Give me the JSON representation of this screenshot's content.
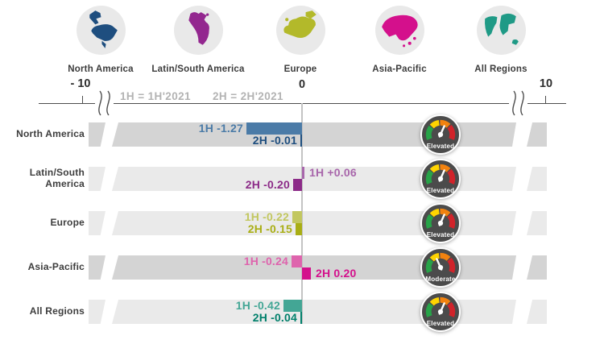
{
  "header": {
    "regions": [
      {
        "name": "North America",
        "icon": "north-america-map-icon",
        "color": "#1e4e7f"
      },
      {
        "name": "Latin/South America",
        "icon": "latin-south-america-map-icon",
        "color": "#93278f"
      },
      {
        "name": "Europe",
        "icon": "europe-map-icon",
        "color": "#b3b92a"
      },
      {
        "name": "Asia-Pacific",
        "icon": "asia-pacific-map-icon",
        "color": "#d4108c"
      },
      {
        "name": "All Regions",
        "icon": "world-map-icon",
        "color": "#1f9a86"
      }
    ]
  },
  "axis": {
    "min_label": "- 10",
    "zero_label": "0",
    "max_label": "10",
    "legend_1h": "1H = 1H'2021",
    "legend_2h": "2H = 2H'2021"
  },
  "chart_data": {
    "type": "bar",
    "orientation": "horizontal",
    "title": "",
    "axis_range": [
      -10,
      10
    ],
    "axis_has_breaks": true,
    "categories": [
      "North America",
      "Latin/South America",
      "Europe",
      "Asia-Pacific",
      "All Regions"
    ],
    "series": [
      {
        "name": "1H (1H'2021)",
        "values": [
          -1.27,
          0.06,
          -0.22,
          -0.24,
          -0.42
        ]
      },
      {
        "name": "2H (2H'2021)",
        "values": [
          -0.01,
          -0.2,
          -0.15,
          0.2,
          -0.04
        ]
      }
    ],
    "gauge_status": [
      "Elevated",
      "Elevated",
      "Elevated",
      "Moderate",
      "Elevated"
    ]
  },
  "rows": [
    {
      "label": "North America",
      "h1_label": "1H -1.27",
      "h2_label": "2H -0.01",
      "gauge": "Elevated",
      "h1_color": "#4b7ba7",
      "h2_color": "#1e4e7f"
    },
    {
      "label": "Latin/South America",
      "h1_label": "1H +0.06",
      "h2_label": "2H -0.20",
      "gauge": "Elevated",
      "h1_color": "#a866ab",
      "h2_color": "#8c2b88"
    },
    {
      "label": "Europe",
      "h1_label": "1H -0.22",
      "h2_label": "2H -0.15",
      "gauge": "Elevated",
      "h1_color": "#c2c75f",
      "h2_color": "#a9ae14"
    },
    {
      "label": "Asia-Pacific",
      "h1_label": "1H -0.24",
      "h2_label": "2H 0.20",
      "gauge": "Moderate",
      "h1_color": "#de64ad",
      "h2_color": "#d4108c"
    },
    {
      "label": "All Regions",
      "h1_label": "1H -0.42",
      "h2_label": "2H -0.04",
      "gauge": "Elevated",
      "h1_color": "#43a695",
      "h2_color": "#00806b"
    }
  ],
  "gauge_palette": {
    "green": "#27a348",
    "yellow": "#ffd400",
    "orange": "#f2820f",
    "red": "#d1232a",
    "body": "#4b4b4b"
  }
}
